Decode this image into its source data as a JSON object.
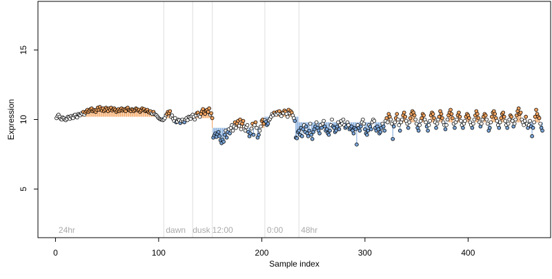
{
  "chart_data": {
    "type": "scatter",
    "title": "",
    "xlabel": "Sample index",
    "ylabel": "Expression",
    "xlim": [
      -17,
      480
    ],
    "ylim": [
      1.5,
      18.5
    ],
    "x_ticks": [
      0,
      100,
      200,
      300,
      400
    ],
    "y_ticks": [
      5,
      10,
      15
    ],
    "grid": false,
    "legend": "none",
    "colors": {
      "above": "#f4a460",
      "below": "#7aa6da",
      "neutral": "#ffffff",
      "vline": "#dddddd",
      "region_label": "#aaaaaa"
    },
    "vertical_lines": [
      105,
      133,
      152,
      203,
      236
    ],
    "region_labels": [
      {
        "x": 3,
        "text": "24hr"
      },
      {
        "x": 107,
        "text": "dawn"
      },
      {
        "x": 133,
        "text": "dusk"
      },
      {
        "x": 152,
        "text": "12:00"
      },
      {
        "x": 205,
        "text": "0:00"
      },
      {
        "x": 238,
        "text": "48hr"
      }
    ],
    "baselines": [
      {
        "from": 1,
        "to": 104,
        "y": 10.2
      },
      {
        "from": 105,
        "to": 151,
        "y": 10.1
      },
      {
        "from": 152,
        "to": 202,
        "y": 9.4
      },
      {
        "from": 203,
        "to": 235,
        "y": 10.2
      },
      {
        "from": 236,
        "to": 462,
        "y": 9.8
      }
    ],
    "y": [
      10.1,
      10.25,
      10.35,
      10.2,
      10.05,
      10.0,
      10.15,
      10.1,
      10.0,
      9.95,
      10.05,
      10.2,
      10.15,
      10.05,
      10.25,
      10.15,
      10.1,
      10.3,
      10.35,
      10.2,
      10.15,
      10.4,
      10.35,
      10.3,
      10.45,
      10.4,
      10.55,
      10.35,
      10.5,
      10.6,
      10.7,
      10.55,
      10.65,
      10.75,
      10.8,
      10.6,
      10.7,
      10.65,
      10.55,
      10.7,
      10.85,
      10.7,
      10.9,
      10.75,
      10.65,
      10.8,
      10.6,
      10.7,
      10.85,
      10.75,
      10.6,
      10.8,
      10.7,
      10.85,
      10.65,
      10.75,
      10.8,
      10.7,
      10.55,
      10.65,
      10.75,
      10.6,
      10.7,
      10.8,
      10.65,
      10.75,
      10.7,
      10.6,
      10.8,
      10.85,
      10.7,
      10.65,
      10.6,
      10.75,
      10.7,
      10.6,
      10.7,
      10.8,
      10.75,
      10.65,
      10.7,
      10.55,
      10.65,
      10.8,
      10.7,
      10.75,
      10.6,
      10.65,
      10.7,
      10.55,
      10.5,
      10.6,
      10.45,
      10.4,
      10.55,
      10.4,
      10.35,
      10.3,
      10.2,
      10.1,
      10.05,
      10.0,
      10.0,
      9.95,
      10.0,
      10.1,
      10.3,
      10.4,
      10.55,
      10.45,
      10.6,
      10.2,
      10.3,
      10.05,
      9.9,
      10.1,
      9.8,
      9.85,
      10.0,
      9.95,
      9.75,
      9.9,
      10.0,
      9.85,
      9.8,
      10.0,
      10.1,
      9.95,
      10.2,
      10.15,
      10.05,
      10.25,
      10.35,
      10.2,
      10.0,
      10.3,
      10.45,
      10.5,
      10.3,
      10.2,
      10.4,
      10.6,
      10.75,
      10.5,
      10.4,
      10.65,
      10.7,
      10.55,
      10.8,
      10.35,
      10.45,
      10.1,
      8.7,
      8.85,
      9.0,
      8.75,
      8.95,
      9.1,
      8.8,
      8.5,
      8.3,
      8.55,
      8.4,
      8.9,
      9.2,
      8.7,
      9.1,
      9.3,
      9.0,
      9.4,
      9.6,
      9.2,
      9.5,
      9.8,
      9.4,
      9.7,
      9.9,
      9.55,
      10.0,
      9.3,
      9.7,
      9.9,
      9.5,
      9.2,
      9.45,
      9.6,
      9.1,
      8.8,
      9.0,
      9.35,
      9.7,
      8.9,
      9.6,
      9.8,
      9.4,
      8.7,
      8.9,
      9.2,
      9.5,
      9.9,
      10.0,
      9.7,
      9.95,
      9.85,
      9.6,
      9.7,
      9.95,
      10.05,
      10.2,
      10.4,
      10.3,
      10.5,
      10.4,
      10.35,
      10.55,
      10.45,
      10.6,
      10.35,
      10.25,
      10.5,
      10.45,
      10.65,
      10.55,
      10.4,
      10.2,
      10.7,
      10.45,
      10.6,
      10.5,
      10.3,
      10.1,
      9.9,
      8.7,
      8.65,
      9.1,
      9.2,
      8.9,
      9.4,
      8.8,
      9.3,
      9.6,
      9.1,
      9.5,
      9.0,
      8.8,
      9.2,
      9.7,
      8.9,
      8.6,
      9.1,
      9.3,
      9.5,
      9.8,
      9.4,
      9.2,
      9.0,
      9.6,
      9.4,
      9.7,
      9.9,
      9.5,
      9.2,
      9.3,
      9.0,
      8.9,
      9.2,
      9.6,
      10.0,
      9.5,
      9.4,
      9.1,
      9.2,
      9.5,
      9.8,
      9.3,
      9.6,
      9.9,
      9.7,
      10.0,
      9.6,
      9.4,
      9.5,
      9.8,
      9.6,
      9.3,
      9.4,
      9.5,
      9.2,
      9.0,
      9.4,
      9.3,
      8.2,
      9.6,
      9.4,
      9.2,
      9.5,
      9.8,
      10.0,
      9.7,
      9.3,
      9.0,
      8.9,
      9.2,
      9.6,
      9.5,
      9.3,
      9.8,
      10.0,
      9.9,
      9.4,
      9.2,
      9.5,
      9.3,
      9.0,
      9.1,
      9.4,
      9.7,
      9.5,
      9.2,
      9.9,
      10.1,
      9.8,
      10.4,
      10.2,
      10.0,
      9.7,
      8.6,
      9.5,
      9.8,
      10.1,
      10.4,
      10.0,
      9.6,
      9.2,
      9.8,
      10.0,
      10.3,
      10.5,
      10.2,
      9.9,
      9.7,
      9.4,
      9.8,
      10.1,
      10.4,
      10.6,
      10.5,
      10.3,
      10.0,
      9.7,
      9.4,
      9.2,
      9.6,
      9.9,
      10.1,
      10.4,
      10.3,
      10.0,
      9.8,
      9.5,
      9.2,
      9.6,
      9.9,
      10.3,
      10.5,
      10.4,
      10.1,
      9.8,
      9.4,
      9.7,
      10.0,
      10.2,
      10.6,
      10.4,
      10.1,
      9.8,
      9.6,
      9.3,
      9.6,
      10.0,
      10.3,
      10.5,
      10.7,
      10.4,
      10.1,
      9.7,
      9.4,
      9.8,
      10.0,
      10.3,
      10.5,
      10.2,
      9.9,
      9.6,
      9.4,
      9.7,
      9.9,
      10.2,
      10.4,
      10.3,
      10.1,
      9.8,
      9.6,
      9.4,
      9.7,
      10.0,
      10.3,
      10.6,
      10.4,
      10.1,
      9.8,
      9.5,
      9.7,
      10.0,
      10.2,
      10.4,
      10.3,
      10.0,
      9.7,
      9.2,
      9.4,
      9.8,
      10.2,
      10.5,
      10.6,
      10.4,
      10.1,
      9.9,
      9.6,
      9.4,
      9.8,
      10.1,
      10.4,
      10.5,
      10.2,
      9.9,
      9.6,
      9.4,
      9.7,
      10.0,
      10.3,
      10.2,
      9.9,
      9.5,
      9.7,
      10.0,
      10.3,
      10.6,
      10.8,
      10.4,
      10.5,
      10.0,
      9.8,
      9.6,
      9.9,
      10.2,
      9.7,
      9.4,
      9.6,
      9.9,
      9.5,
      8.8,
      9.4,
      9.8,
      10.2,
      10.7,
      10.4,
      10.2,
      10.1,
      9.7,
      9.4,
      9.2
    ]
  }
}
